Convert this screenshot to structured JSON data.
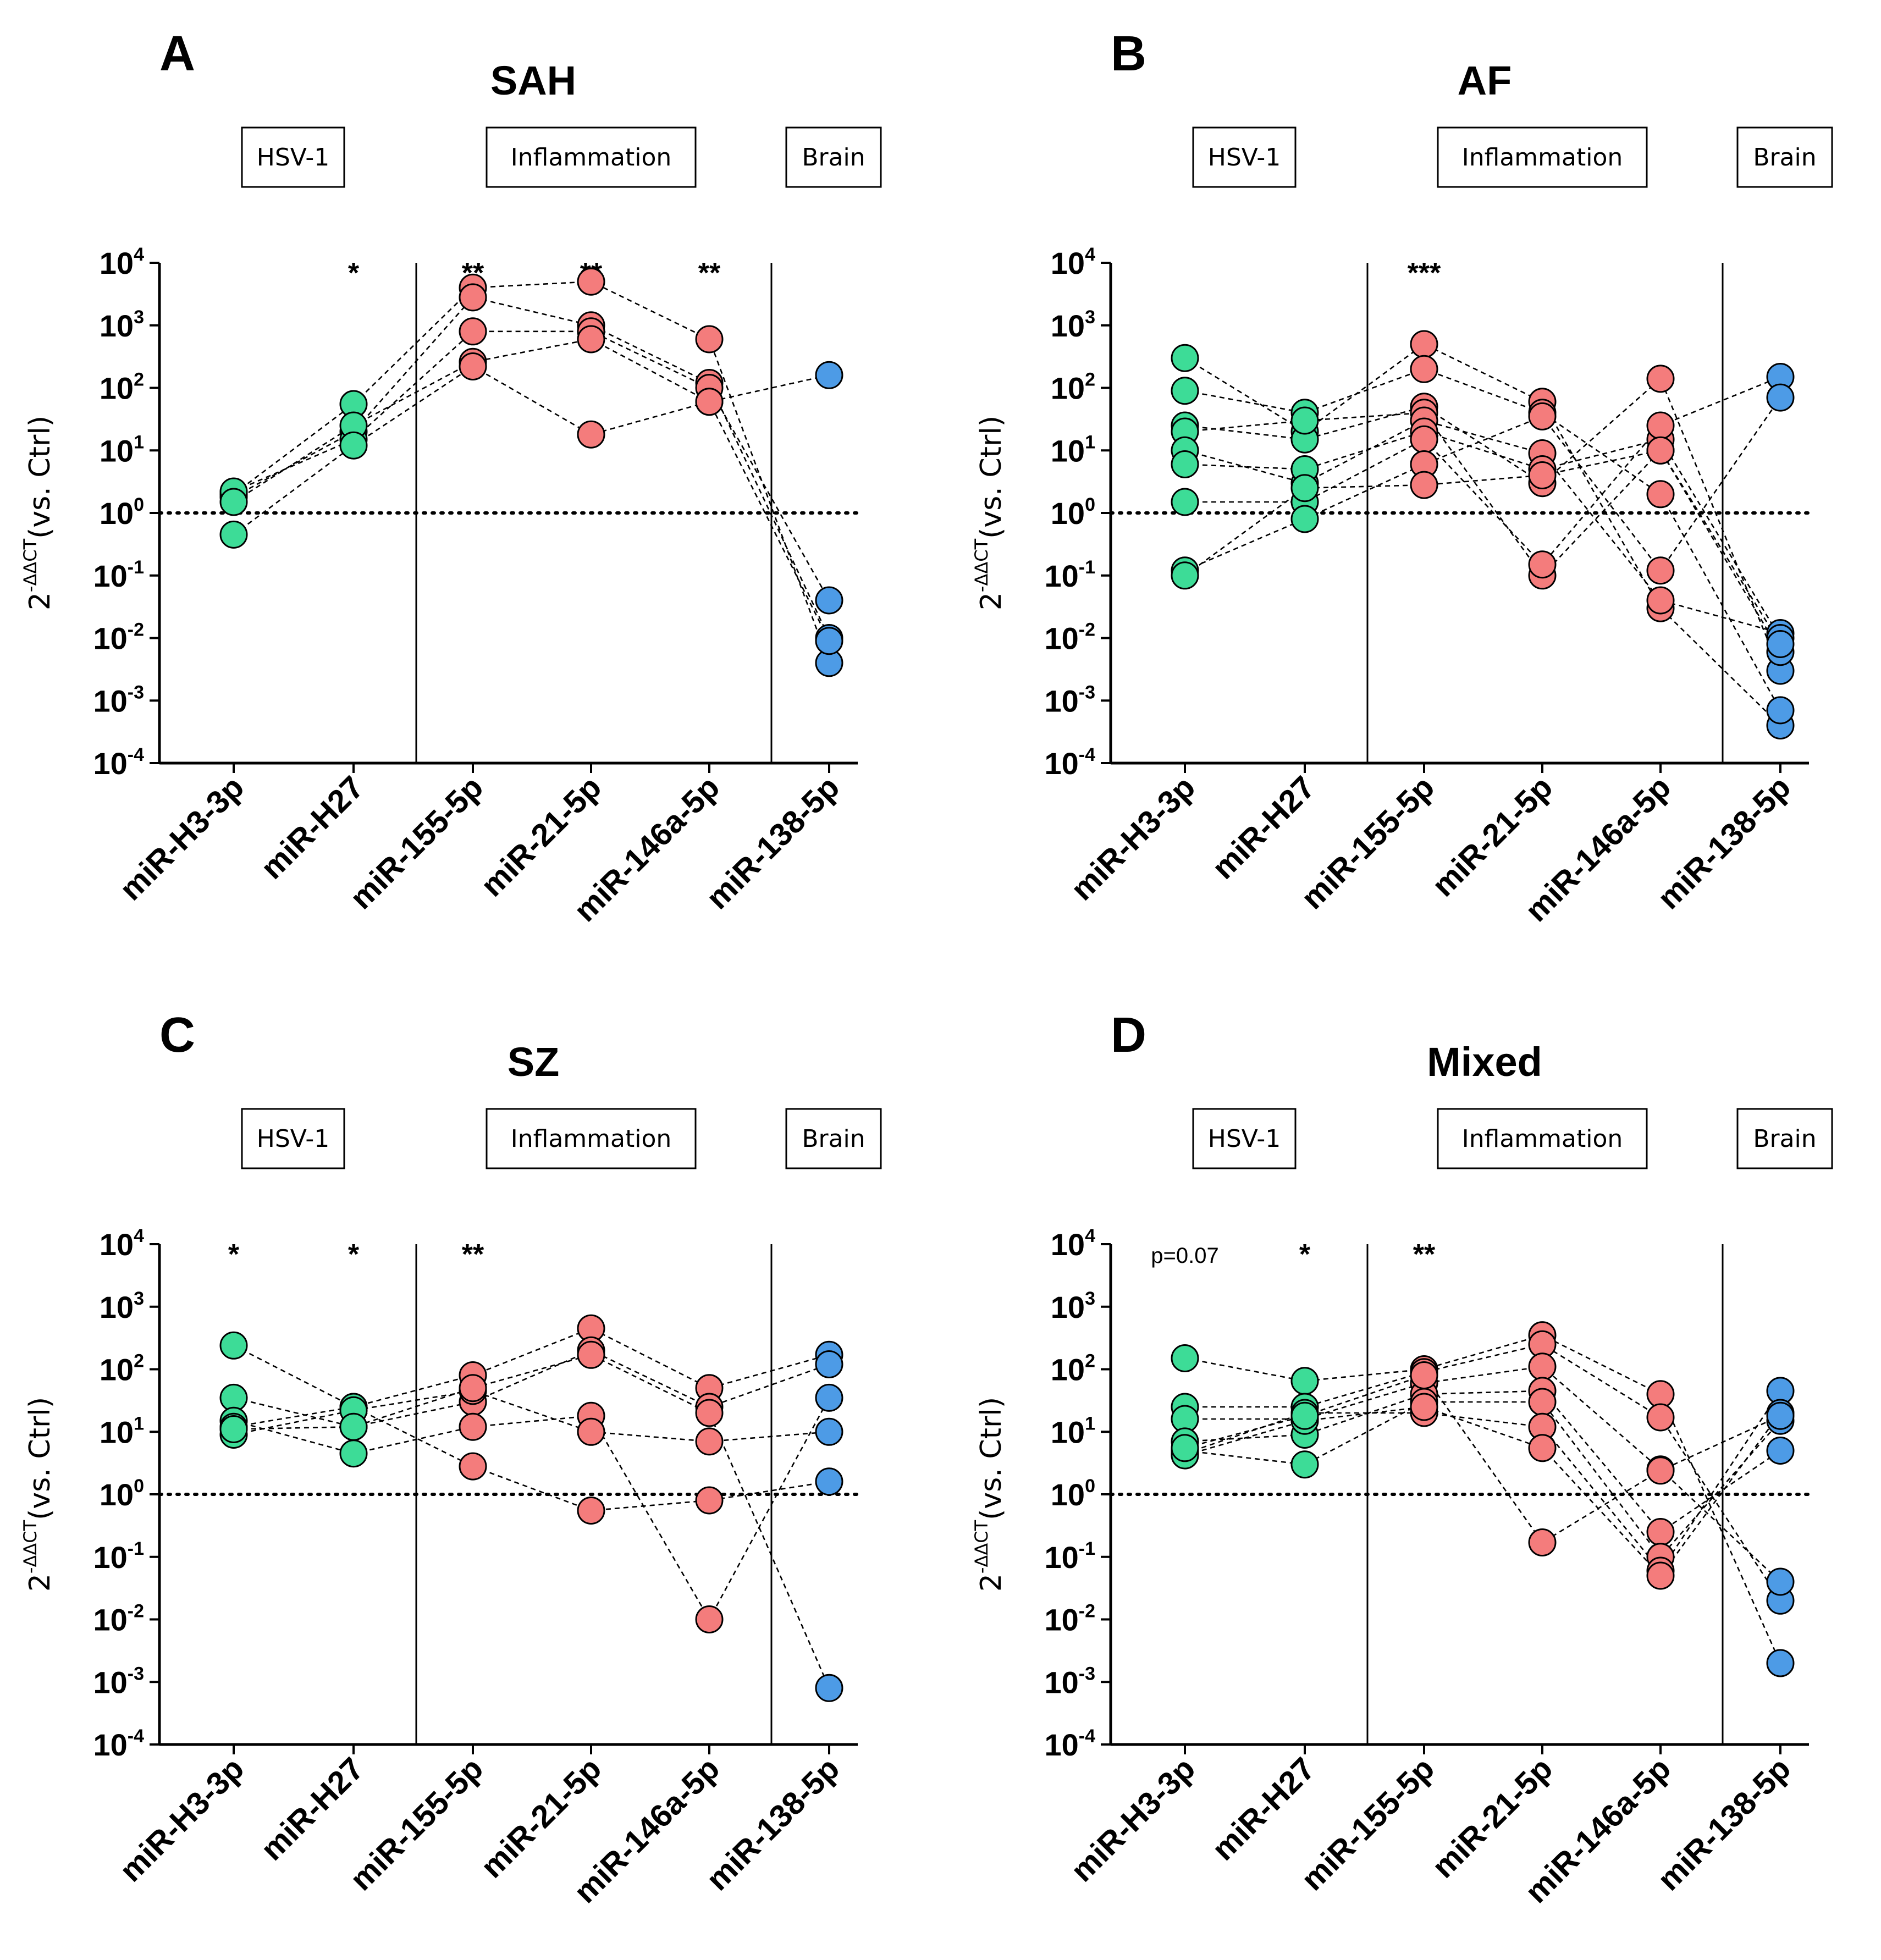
{
  "figure": {
    "description_labels": {
      "y_axis": "2",
      "y_axis_sup": "-ΔΔCT",
      "y_axis_rest": "(vs. Ctrl)"
    }
  },
  "colors": {
    "hsv": "#3ddc97",
    "inflammation": "#f47c7c",
    "brain": "#4d9be6",
    "axis": "#000000"
  },
  "chart_data": [
    {
      "type": "scatter",
      "panel": "A",
      "title": "SAH",
      "groups": [
        "HSV-1",
        "Inflammation",
        "Brain"
      ],
      "categories": [
        "miR-H3-3p",
        "miR-H27",
        "miR-155-5p",
        "miR-21-5p",
        "miR-146a-5p",
        "miR-138-5p"
      ],
      "category_group": [
        "HSV-1",
        "HSV-1",
        "Inflammation",
        "Inflammation",
        "Inflammation",
        "Brain"
      ],
      "ylabel": "2^-ΔΔCT (vs. Ctrl)",
      "yscale": "log10",
      "ylim": [
        0.0001,
        10000
      ],
      "reference_line": 1,
      "significance": [
        "",
        "*",
        "**",
        "**",
        "**",
        ""
      ],
      "note": "",
      "subjects": [
        [
          2,
          55,
          4000,
          5000,
          600,
          0.004
        ],
        [
          1.8,
          20,
          2800,
          1000,
          120,
          0.01
        ],
        [
          2.2,
          15,
          800,
          800,
          100,
          0.04
        ],
        [
          1.5,
          25,
          260,
          600,
          60,
          0.009
        ],
        [
          0.45,
          12,
          220,
          18,
          60,
          160
        ]
      ]
    },
    {
      "type": "scatter",
      "panel": "B",
      "title": "AF",
      "groups": [
        "HSV-1",
        "Inflammation",
        "Brain"
      ],
      "categories": [
        "miR-H3-3p",
        "miR-H27",
        "miR-155-5p",
        "miR-21-5p",
        "miR-146a-5p",
        "miR-138-5p"
      ],
      "category_group": [
        "HSV-1",
        "HSV-1",
        "Inflammation",
        "Inflammation",
        "Inflammation",
        "Brain"
      ],
      "ylabel": "2^-ΔΔCT (vs. Ctrl)",
      "yscale": "log10",
      "ylim": [
        0.0001,
        10000
      ],
      "reference_line": 1,
      "significance": [
        "",
        "",
        "***",
        "",
        "",
        ""
      ],
      "note": "",
      "subjects": [
        [
          300,
          20,
          500,
          60,
          0.03,
          0.0004
        ],
        [
          90,
          40,
          200,
          40,
          2,
          0.0007
        ],
        [
          25,
          15,
          50,
          3,
          140,
          0.003
        ],
        [
          20,
          30,
          40,
          0.1,
          10,
          0.006
        ],
        [
          10,
          3,
          30,
          9,
          0.04,
          0.012
        ],
        [
          6,
          5,
          20,
          5,
          15,
          0.01
        ],
        [
          1.5,
          1.5,
          15,
          0.15,
          25,
          150
        ],
        [
          0.12,
          0.8,
          6,
          35,
          0.12,
          70
        ],
        [
          0.1,
          2.5,
          2.8,
          4,
          10,
          0.008
        ]
      ]
    },
    {
      "type": "scatter",
      "panel": "C",
      "title": "SZ",
      "groups": [
        "HSV-1",
        "Inflammation",
        "Brain"
      ],
      "categories": [
        "miR-H3-3p",
        "miR-H27",
        "miR-155-5p",
        "miR-21-5p",
        "miR-146a-5p",
        "miR-138-5p"
      ],
      "category_group": [
        "HSV-1",
        "HSV-1",
        "Inflammation",
        "Inflammation",
        "Inflammation",
        "Brain"
      ],
      "ylabel": "2^-ΔΔCT (vs. Ctrl)",
      "yscale": "log10",
      "ylim": [
        0.0001,
        10000
      ],
      "reference_line": 1,
      "significance": [
        "*",
        "*",
        "**",
        "",
        "",
        ""
      ],
      "note": "",
      "subjects": [
        [
          240,
          25,
          80,
          450,
          50,
          170
        ],
        [
          35,
          12,
          30,
          200,
          25,
          120
        ],
        [
          15,
          4.5,
          12,
          18,
          0.01,
          35
        ],
        [
          12,
          25,
          2.8,
          0.55,
          0.8,
          1.6
        ],
        [
          9,
          22,
          45,
          10,
          7,
          10
        ],
        [
          11,
          12,
          50,
          170,
          20,
          0.0008
        ]
      ]
    },
    {
      "type": "scatter",
      "panel": "D",
      "title": "Mixed",
      "groups": [
        "HSV-1",
        "Inflammation",
        "Brain"
      ],
      "categories": [
        "miR-H3-3p",
        "miR-H27",
        "miR-155-5p",
        "miR-21-5p",
        "miR-146a-5p",
        "miR-138-5p"
      ],
      "category_group": [
        "HSV-1",
        "HSV-1",
        "Inflammation",
        "Inflammation",
        "Inflammation",
        "Brain"
      ],
      "ylabel": "2^-ΔΔCT (vs. Ctrl)",
      "yscale": "log10",
      "ylim": [
        0.0001,
        10000
      ],
      "reference_line": 1,
      "significance": [
        "",
        "*",
        "**",
        "",
        "",
        ""
      ],
      "note": "p=0.07",
      "subjects": [
        [
          150,
          65,
          100,
          350,
          40,
          0.002
        ],
        [
          25,
          25,
          90,
          250,
          17,
          0.02
        ],
        [
          16,
          16,
          60,
          110,
          2.5,
          0.04
        ],
        [
          7,
          9,
          40,
          45,
          0.25,
          5
        ],
        [
          5,
          3,
          30,
          30,
          0.1,
          15
        ],
        [
          4.5,
          20,
          20,
          12,
          0.06,
          45
        ],
        [
          4.2,
          15,
          25,
          5.5,
          0.05,
          20
        ],
        [
          5.5,
          18,
          80,
          0.17,
          2.4,
          18
        ]
      ]
    }
  ]
}
